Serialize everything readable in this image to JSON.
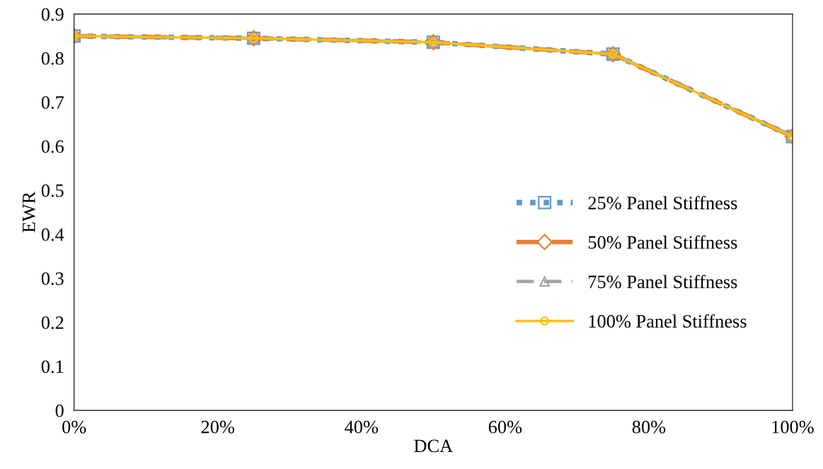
{
  "chart_data": {
    "type": "line",
    "xlabel": "DCA",
    "ylabel": "EWR",
    "x": [
      0,
      0.25,
      0.5,
      0.75,
      1.0
    ],
    "series": [
      {
        "name": "25% Panel Stiffness",
        "color": "#5b9bd5",
        "marker": "square",
        "line_style": "dotted",
        "values": [
          0.85,
          0.845,
          0.836,
          0.809,
          0.622
        ]
      },
      {
        "name": "50% Panel Stiffness",
        "color": "#ed7d31",
        "marker": "diamond",
        "line_style": "dashed",
        "values": [
          0.85,
          0.845,
          0.836,
          0.809,
          0.622
        ]
      },
      {
        "name": "75% Panel Stiffness",
        "color": "#a5a5a5",
        "marker": "triangle",
        "line_style": "dashed",
        "values": [
          0.85,
          0.845,
          0.836,
          0.809,
          0.622
        ]
      },
      {
        "name": "100% Panel Stiffness",
        "color": "#ffc000",
        "marker": "circle",
        "line_style": "solid",
        "values": [
          0.85,
          0.845,
          0.836,
          0.809,
          0.622
        ]
      }
    ],
    "xlim": [
      0,
      1
    ],
    "xticks": [
      {
        "value": 0,
        "label": "0%"
      },
      {
        "value": 0.2,
        "label": "20%"
      },
      {
        "value": 0.4,
        "label": "40%"
      },
      {
        "value": 0.6,
        "label": "60%"
      },
      {
        "value": 0.8,
        "label": "80%"
      },
      {
        "value": 1.0,
        "label": "100%"
      }
    ],
    "ylim": [
      0,
      0.9
    ],
    "yticks": [
      0,
      {
        "value": 0.1,
        "label": "0.1"
      },
      {
        "value": 0.2,
        "label": "0.2"
      },
      {
        "value": 0.3,
        "label": "0.3"
      },
      {
        "value": 0.4,
        "label": "0.4"
      },
      {
        "value": 0.5,
        "label": "0.5"
      },
      {
        "value": 0.6,
        "label": "0.6"
      },
      {
        "value": 0.7,
        "label": "0.7"
      },
      {
        "value": 0.8,
        "label": "0.8"
      },
      {
        "value": 0.9,
        "label": "0.9"
      }
    ],
    "grid": false,
    "legend": "right"
  }
}
